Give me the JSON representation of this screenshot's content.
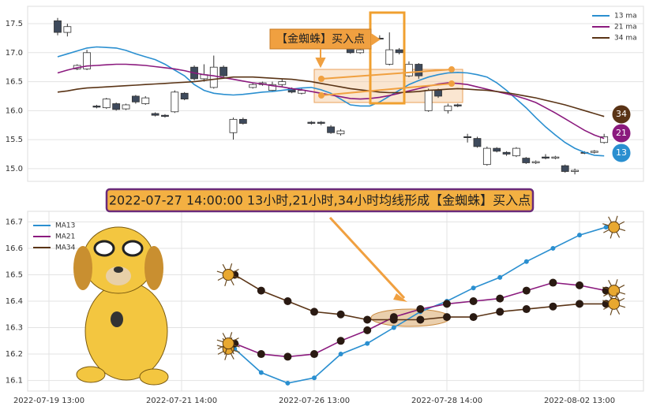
{
  "chart_data": [
    {
      "type": "candlestick",
      "open": [
        17.55,
        17.35,
        16.72,
        16.72,
        16.08,
        16.05,
        16.12,
        16.03,
        16.25,
        16.12,
        15.95,
        15.92,
        15.98,
        16.3,
        16.75,
        16.55,
        16.4,
        16.75,
        15.62,
        15.85,
        16.4,
        16.45,
        16.35,
        16.45,
        16.38,
        16.3,
        15.8,
        15.8,
        15.72,
        15.6,
        17.1,
        17.0,
        17.25,
        17.25,
        16.8,
        17.05,
        16.6,
        16.8,
        16.0,
        16.35,
        16.0,
        16.1,
        15.55,
        15.52,
        15.07,
        15.35,
        15.28,
        15.22,
        15.18,
        15.1,
        15.2,
        15.18,
        15.05,
        14.95,
        15.28,
        15.28,
        15.45
      ],
      "close": [
        17.35,
        17.45,
        16.78,
        17.0,
        16.06,
        16.2,
        16.02,
        16.1,
        16.15,
        16.22,
        15.92,
        15.9,
        16.32,
        16.2,
        16.55,
        16.62,
        16.75,
        16.6,
        15.85,
        15.78,
        16.45,
        16.48,
        16.45,
        16.5,
        16.32,
        16.35,
        15.78,
        15.78,
        15.62,
        15.65,
        17.0,
        17.05,
        17.2,
        17.24,
        17.05,
        17.0,
        16.8,
        16.6,
        16.35,
        16.25,
        16.08,
        16.08,
        15.54,
        15.38,
        15.35,
        15.3,
        15.25,
        15.35,
        15.1,
        15.12,
        15.18,
        15.2,
        14.95,
        14.97,
        15.27,
        15.3,
        15.55
      ],
      "high": [
        17.6,
        17.5,
        16.8,
        17.05,
        16.1,
        16.22,
        16.14,
        16.12,
        16.27,
        16.25,
        15.97,
        15.94,
        16.35,
        16.32,
        16.78,
        16.8,
        16.95,
        16.78,
        15.88,
        15.88,
        16.48,
        16.5,
        16.5,
        16.55,
        16.4,
        16.38,
        15.82,
        15.82,
        15.75,
        15.68,
        17.15,
        17.1,
        17.28,
        17.3,
        17.35,
        17.08,
        16.85,
        16.82,
        16.38,
        16.38,
        16.12,
        16.12,
        15.6,
        15.55,
        15.38,
        15.37,
        15.3,
        15.37,
        15.2,
        15.14,
        15.25,
        15.22,
        15.07,
        15.0,
        15.3,
        15.32,
        15.6
      ],
      "low": [
        17.3,
        17.28,
        16.7,
        16.7,
        16.04,
        16.03,
        16.0,
        16.01,
        16.12,
        16.1,
        15.9,
        15.88,
        15.96,
        16.18,
        16.52,
        16.5,
        16.38,
        16.55,
        15.5,
        15.76,
        16.38,
        16.43,
        16.33,
        16.42,
        16.3,
        16.28,
        15.76,
        15.75,
        15.6,
        15.57,
        16.98,
        16.98,
        17.18,
        17.22,
        16.78,
        16.97,
        16.58,
        16.55,
        15.98,
        16.22,
        15.95,
        16.06,
        15.45,
        15.36,
        15.05,
        15.28,
        15.22,
        15.2,
        15.08,
        15.08,
        15.16,
        15.16,
        14.93,
        14.9,
        15.25,
        15.26,
        15.43
      ],
      "series": [
        {
          "name": "13 ma",
          "color": "#2a8fd0",
          "values": [
            16.93,
            16.98,
            17.03,
            17.08,
            17.1,
            17.09,
            17.08,
            17.04,
            16.98,
            16.93,
            16.88,
            16.8,
            16.7,
            16.6,
            16.45,
            16.35,
            16.3,
            16.28,
            16.27,
            16.28,
            16.3,
            16.32,
            16.33,
            16.35,
            16.37,
            16.39,
            16.4,
            16.36,
            16.3,
            16.2,
            16.1,
            16.08,
            16.08,
            16.15,
            16.25,
            16.35,
            16.45,
            16.52,
            16.58,
            16.62,
            16.65,
            16.66,
            16.65,
            16.62,
            16.58,
            16.48,
            16.35,
            16.2,
            16.05,
            15.88,
            15.72,
            15.58,
            15.45,
            15.35,
            15.28,
            15.23,
            15.22
          ]
        },
        {
          "name": "21 ma",
          "color": "#8b1a7e",
          "values": [
            16.65,
            16.7,
            16.74,
            16.77,
            16.78,
            16.79,
            16.8,
            16.8,
            16.79,
            16.78,
            16.76,
            16.74,
            16.72,
            16.69,
            16.65,
            16.62,
            16.6,
            16.57,
            16.54,
            16.51,
            16.48,
            16.46,
            16.43,
            16.41,
            16.38,
            16.36,
            16.33,
            16.3,
            16.27,
            16.24,
            16.21,
            16.2,
            16.21,
            16.23,
            16.26,
            16.3,
            16.34,
            16.38,
            16.42,
            16.46,
            16.48,
            16.47,
            16.45,
            16.41,
            16.37,
            16.33,
            16.29,
            16.25,
            16.2,
            16.14,
            16.05,
            15.96,
            15.86,
            15.76,
            15.66,
            15.58,
            15.52
          ]
        },
        {
          "name": "34 ma",
          "color": "#5a3416",
          "values": [
            16.32,
            16.34,
            16.37,
            16.39,
            16.4,
            16.41,
            16.42,
            16.43,
            16.44,
            16.45,
            16.46,
            16.47,
            16.48,
            16.49,
            16.5,
            16.52,
            16.54,
            16.56,
            16.58,
            16.58,
            16.58,
            16.57,
            16.56,
            16.55,
            16.54,
            16.52,
            16.5,
            16.47,
            16.44,
            16.41,
            16.38,
            16.36,
            16.34,
            16.32,
            16.31,
            16.31,
            16.32,
            16.33,
            16.35,
            16.36,
            16.37,
            16.38,
            16.37,
            16.36,
            16.35,
            16.33,
            16.31,
            16.28,
            16.25,
            16.22,
            16.18,
            16.14,
            16.1,
            16.05,
            16.0,
            15.95,
            15.9
          ]
        }
      ],
      "end_labels": [
        "13",
        "21",
        "34"
      ],
      "annotation": "【金蜘蛛】买入点",
      "ylim": [
        14.78,
        17.8
      ],
      "yticks": [
        {
          "value": 15,
          "label": "15.0"
        },
        {
          "value": 15.5,
          "label": "15.5"
        },
        {
          "value": 16,
          "label": "16.0"
        },
        {
          "value": 16.5,
          "label": "16.5"
        },
        {
          "value": 17,
          "label": "17.0"
        },
        {
          "value": 17.5,
          "label": "17.5"
        }
      ],
      "legend": "upper right",
      "grid": true
    },
    {
      "type": "line",
      "annotation": "2022-07-27 14:00:00 13小时,21小时,34小时均线形成【金蜘蛛】买入点",
      "categories": [
        "2022-07-19 13:00",
        null,
        null,
        null,
        null,
        "2022-07-21 14:00",
        null,
        null,
        null,
        null,
        "2022-07-26 13:00",
        null,
        null,
        null,
        null,
        "2022-07-28 14:00",
        null,
        null,
        null,
        null,
        "2022-08-02 13:00",
        null
      ],
      "series": [
        {
          "name": "MA13",
          "color": "#2a8fd0",
          "values": [
            null,
            null,
            null,
            null,
            null,
            null,
            null,
            16.22,
            16.13,
            16.09,
            16.11,
            16.2,
            16.24,
            16.3,
            16.36,
            16.4,
            16.45,
            16.49,
            16.55,
            16.6,
            16.65,
            16.68
          ]
        },
        {
          "name": "MA21",
          "color": "#8b1a7e",
          "values": [
            null,
            null,
            null,
            null,
            null,
            null,
            null,
            16.24,
            16.2,
            16.19,
            16.2,
            16.25,
            16.29,
            16.34,
            16.37,
            16.39,
            16.4,
            16.41,
            16.44,
            16.47,
            16.46,
            16.44
          ]
        },
        {
          "name": "MA34",
          "color": "#5a3416",
          "values": [
            null,
            null,
            null,
            null,
            null,
            null,
            null,
            16.5,
            16.44,
            16.4,
            16.36,
            16.35,
            16.33,
            16.33,
            16.33,
            16.34,
            16.34,
            16.36,
            16.37,
            16.38,
            16.39,
            16.39
          ]
        }
      ],
      "ylim": [
        16.06,
        16.74
      ],
      "yticks": [
        16.1,
        16.2,
        16.3,
        16.4,
        16.5,
        16.6,
        16.7
      ],
      "legend": "upper left",
      "grid": true
    }
  ]
}
